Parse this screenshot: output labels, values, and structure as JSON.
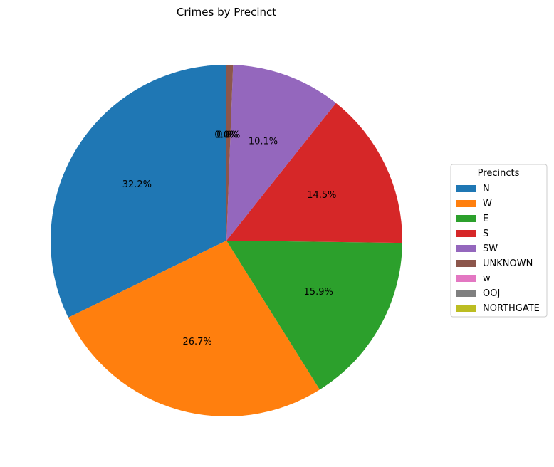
{
  "chart_data": {
    "type": "pie",
    "title": "Crimes by Precinct",
    "legend_title": "Precincts",
    "legend_position": "right",
    "labels": [
      "N",
      "W",
      "E",
      "S",
      "SW",
      "UNKNOWN",
      "w",
      "OOJ",
      "NORTHGATE"
    ],
    "values": [
      32.2,
      26.7,
      15.9,
      14.5,
      10.1,
      0.6,
      0.0,
      0.0,
      0.0
    ],
    "value_labels": [
      "32.2%",
      "26.7%",
      "15.9%",
      "14.5%",
      "10.1%",
      "0.6%",
      "0.0%",
      "0.0%",
      "0.0%"
    ],
    "colors": [
      "#1f77b4",
      "#ff7f0e",
      "#2ca02c",
      "#d62728",
      "#9467bd",
      "#8c564b",
      "#e377c2",
      "#7f7f7f",
      "#bcbd22"
    ],
    "start_angle": 90,
    "counterclockwise": true
  }
}
